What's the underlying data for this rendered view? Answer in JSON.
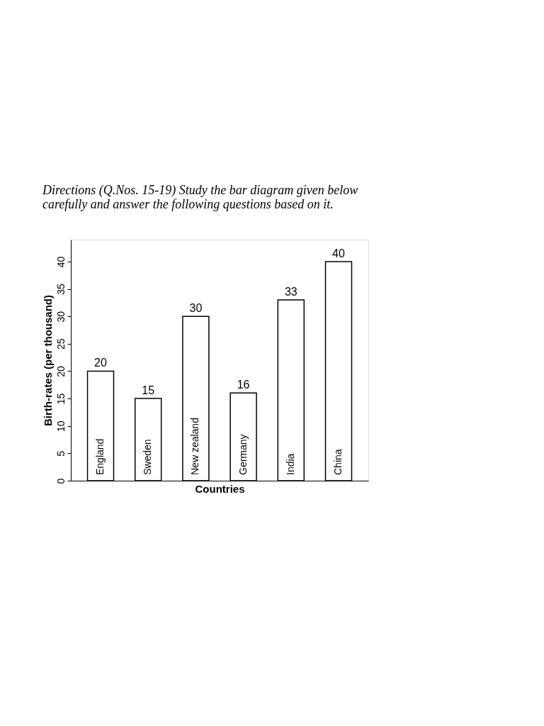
{
  "chart_data": {
    "type": "bar",
    "title": "Directions (Q.Nos. 15-19) Study the bar diagram given below carefully and answer the following questions based on it.",
    "xlabel": "Countries",
    "ylabel": "Birth-rates (per thousand)",
    "categories": [
      "England",
      "Sweden",
      "New zealand",
      "Germany",
      "India",
      "China"
    ],
    "values": [
      20,
      15,
      30,
      16,
      33,
      40
    ],
    "color": "#ffffff",
    "ylim": [
      0,
      44
    ],
    "yticks": [
      0,
      5,
      10,
      15,
      20,
      25,
      30,
      35,
      40
    ],
    "grid": false,
    "data_labels": true,
    "tick_labels": "y"
  }
}
